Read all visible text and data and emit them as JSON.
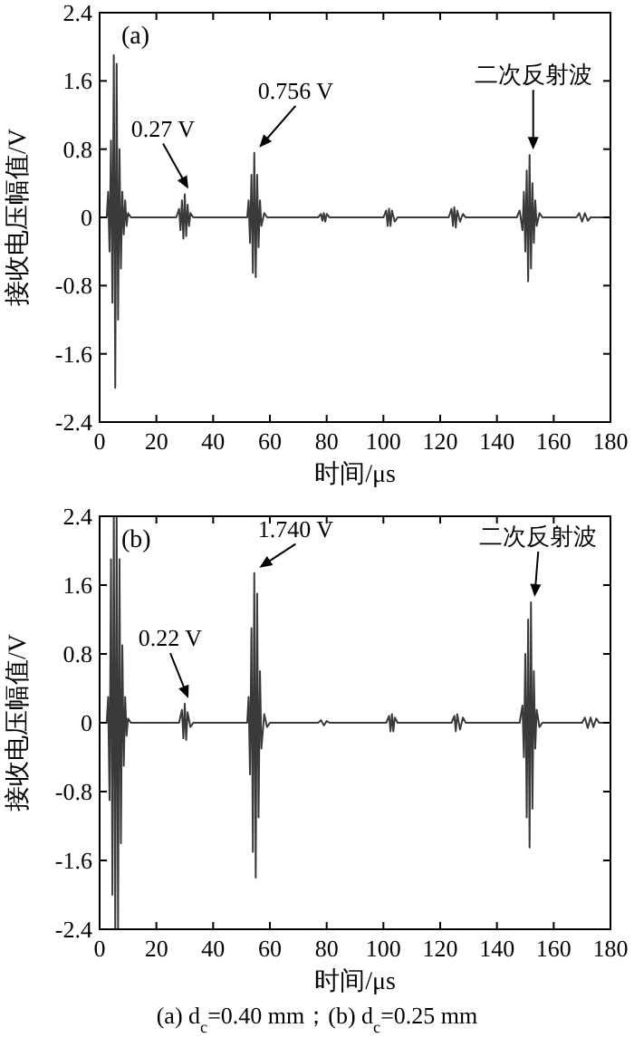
{
  "chart_data": [
    {
      "type": "line",
      "title": "(a)",
      "xlabel": "时间/μs",
      "ylabel": "接收电压幅值/V",
      "xlim": [
        0,
        180
      ],
      "ylim": [
        -2.4,
        2.4
      ],
      "xticks": [
        0,
        20,
        40,
        60,
        80,
        100,
        120,
        140,
        160,
        180
      ],
      "yticks": [
        {
          "value": 2.4,
          "label": "2.4"
        },
        {
          "value": 1.6,
          "label": "1.6"
        },
        {
          "value": 0.8,
          "label": "0.8"
        },
        0,
        {
          "value": -0.8,
          "label": "-0.8"
        },
        {
          "value": -1.6,
          "label": "-1.6"
        },
        {
          "value": -2.4,
          "label": "-2.4"
        }
      ],
      "grid": false,
      "series": [
        {
          "color": "#3a3a3a",
          "x": [
            0,
            2.5,
            3,
            3.5,
            4,
            4.5,
            5,
            5.5,
            6,
            6.5,
            7,
            7.5,
            8,
            8.5,
            9,
            9.5,
            10,
            11,
            27,
            28,
            28.5,
            29,
            29.5,
            30,
            30.5,
            31,
            31.5,
            32,
            33,
            52,
            52.5,
            53,
            53.5,
            54,
            54.5,
            55,
            55.5,
            56,
            56.5,
            57,
            58,
            59,
            77,
            78,
            78.5,
            79,
            79.5,
            80,
            81,
            100,
            101,
            101.5,
            102,
            102.5,
            103,
            104,
            105,
            123,
            124,
            124.5,
            125,
            125.5,
            126,
            127,
            128,
            129,
            147,
            148,
            149,
            149.5,
            150,
            150.5,
            151,
            151.5,
            152,
            152.5,
            153,
            153.5,
            154,
            155,
            156,
            168,
            169,
            170,
            171,
            172,
            173,
            180
          ],
          "values": [
            0,
            0,
            0.3,
            -0.4,
            0.9,
            -1.0,
            1.9,
            -2.0,
            1.8,
            -1.2,
            0.8,
            -0.6,
            0.3,
            -0.2,
            0.2,
            -0.1,
            0.05,
            0,
            0,
            0.1,
            -0.15,
            0.2,
            -0.25,
            0.27,
            -0.22,
            0.15,
            -0.1,
            0.05,
            0,
            0,
            0.2,
            -0.3,
            0.5,
            -0.65,
            0.756,
            -0.7,
            0.5,
            -0.35,
            0.2,
            -0.1,
            0.05,
            0,
            0,
            0.04,
            -0.04,
            0.05,
            -0.05,
            0.04,
            0,
            0,
            0.08,
            -0.1,
            0.1,
            -0.1,
            0.08,
            -0.05,
            0,
            0,
            0.1,
            -0.1,
            0.12,
            -0.12,
            0.08,
            -0.05,
            0.04,
            0,
            0,
            0.08,
            -0.15,
            0.3,
            -0.4,
            0.55,
            -0.75,
            0.73,
            -0.6,
            0.4,
            -0.3,
            0.2,
            -0.1,
            0.05,
            0,
            0,
            0.05,
            -0.05,
            0.05,
            -0.04,
            0,
            0
          ]
        }
      ],
      "annotations": [
        {
          "text": "0.27 V",
          "x": 30,
          "y": 0.27
        },
        {
          "text": "0.756 V",
          "x": 55,
          "y": 0.756
        },
        {
          "text": "二次反射波",
          "x": 151.5,
          "y": 0.73
        }
      ]
    },
    {
      "type": "line",
      "title": "(b)",
      "xlabel": "时间/μs",
      "ylabel": "接收电压幅值/V",
      "xlim": [
        0,
        180
      ],
      "ylim": [
        -2.4,
        2.4
      ],
      "xticks": [
        0,
        20,
        40,
        60,
        80,
        100,
        120,
        140,
        160,
        180
      ],
      "yticks": [
        {
          "value": 2.4,
          "label": "2.4"
        },
        {
          "value": 1.6,
          "label": "1.6"
        },
        {
          "value": 0.8,
          "label": "0.8"
        },
        0,
        {
          "value": -0.8,
          "label": "-0.8"
        },
        {
          "value": -1.6,
          "label": "-1.6"
        },
        {
          "value": -2.4,
          "label": "-2.4"
        }
      ],
      "grid": false,
      "series": [
        {
          "color": "#3a3a3a",
          "x": [
            0,
            2.5,
            3,
            3.5,
            4,
            4.5,
            5,
            5.5,
            6,
            6.5,
            7,
            7.5,
            8,
            8.5,
            9,
            9.5,
            10,
            11,
            28,
            29,
            29.5,
            30,
            30.5,
            31,
            32,
            33,
            52,
            52.5,
            53,
            53.5,
            54,
            54.5,
            55,
            55.5,
            56,
            56.5,
            57,
            58,
            59,
            60,
            77,
            78,
            79,
            80,
            81,
            101,
            102,
            102.5,
            103,
            103.5,
            104,
            105,
            124,
            125,
            125.5,
            126,
            127,
            128,
            129,
            148,
            149,
            149.5,
            150,
            150.5,
            151,
            151.5,
            152,
            152.5,
            153,
            153.5,
            154,
            155,
            156,
            170,
            171,
            172,
            173,
            174,
            175,
            176,
            180
          ],
          "values": [
            0,
            0,
            0.3,
            -0.9,
            1.9,
            -2.0,
            2.4,
            -2.4,
            2.4,
            -2.4,
            1.9,
            -1.4,
            0.9,
            -0.5,
            0.3,
            -0.15,
            0.05,
            0,
            0,
            0.15,
            -0.18,
            0.22,
            -0.2,
            0.12,
            -0.05,
            0,
            0,
            0.3,
            -0.6,
            1.1,
            -1.5,
            1.74,
            -1.8,
            1.5,
            -1.1,
            0.6,
            -0.3,
            0.1,
            -0.05,
            0,
            0,
            0.03,
            -0.03,
            0.02,
            0,
            0,
            0.08,
            -0.1,
            0.1,
            -0.1,
            0.06,
            0,
            0,
            0.08,
            -0.1,
            0.1,
            -0.08,
            0.06,
            0,
            0,
            0.2,
            -0.4,
            0.8,
            -1.1,
            1.2,
            -1.45,
            1.4,
            -1.0,
            0.6,
            -0.3,
            0.15,
            -0.05,
            0,
            0,
            0.06,
            -0.06,
            0.06,
            -0.05,
            0.05,
            0,
            0
          ]
        }
      ],
      "annotations": [
        {
          "text": "0.22 V",
          "x": 30,
          "y": 0.22
        },
        {
          "text": "1.740 V",
          "x": 55,
          "y": 1.74
        },
        {
          "text": "二次反射波",
          "x": 152,
          "y": 1.4
        },
        "(a) d$_{c}$=0.40 mm；(b) d$_{c}$=0.25 mm"
      ]
    }
  ]
}
